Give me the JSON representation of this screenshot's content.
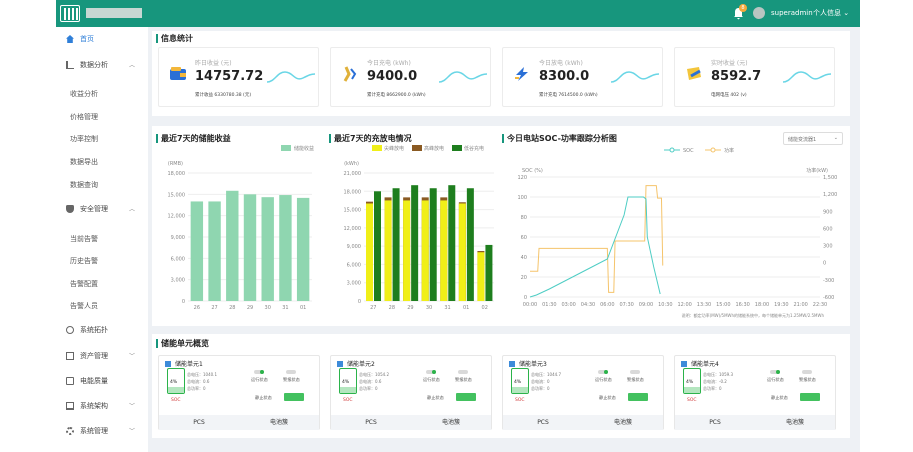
{
  "header": {
    "username": "superadmin",
    "personal_info": "个人信息",
    "notification_count": "8"
  },
  "sidebar": {
    "items": [
      {
        "label": "首页"
      },
      {
        "label": "数据分析"
      },
      {
        "label": "收益分析"
      },
      {
        "label": "价格管理"
      },
      {
        "label": "功率控制"
      },
      {
        "label": "数据导出"
      },
      {
        "label": "数据查询"
      },
      {
        "label": "安全管理"
      },
      {
        "label": "当前告警"
      },
      {
        "label": "历史告警"
      },
      {
        "label": "告警配置"
      },
      {
        "label": "告警人员"
      },
      {
        "label": "系统拓扑"
      },
      {
        "label": "资产管理"
      },
      {
        "label": "电能质量"
      },
      {
        "label": "系统架构"
      },
      {
        "label": "系统管理"
      }
    ]
  },
  "info": {
    "title": "信息统计",
    "cards": [
      {
        "label": "昨日收益 (元)",
        "value": "14757.72",
        "sub": "累计收益 6330780.38 (元)"
      },
      {
        "label": "今日充电 (kWh)",
        "value": "9400.0",
        "sub": "累计充电 8662900.0 (kWh)"
      },
      {
        "label": "今日放电 (kWh)",
        "value": "8300.0",
        "sub": "累计充电 7614500.0 (kWh)"
      },
      {
        "label": "实时收益 (元)",
        "value": "8592.7",
        "sub": "电网电压 402 (v)"
      }
    ]
  },
  "chart1": {
    "title": "最近7天的储能收益",
    "legend": "储能收益",
    "unit": "(RMB)"
  },
  "chart2": {
    "title": "最近7天的充放电情况",
    "unit": "(kWh)",
    "legend": [
      "尖峰放电",
      "高峰放电",
      "低谷充电"
    ]
  },
  "chart3": {
    "title": "今日电站SOC-功率跟踪分析图",
    "legend": [
      "SOC",
      "功率"
    ],
    "yleft": "SOC (%)",
    "yright": "功率(kW)",
    "selector": "储能变流器1",
    "note": "说明：额定功率(MW)/5MWh的储能系统中，每个储能单元为1.25MW/2.5MWh"
  },
  "units": {
    "title": "储能单元概览",
    "items": [
      {
        "name": "储能单元1",
        "pct": "4%",
        "soc": "SOC",
        "v": "1040.1",
        "i": "0.6",
        "p": "0"
      },
      {
        "name": "储能单元2",
        "pct": "4%",
        "soc": "SOC",
        "v": "1054.2",
        "i": "0.6",
        "p": "0"
      },
      {
        "name": "储能单元3",
        "pct": "4%",
        "soc": "SOC",
        "v": "1044.7",
        "i": "0",
        "p": "0"
      },
      {
        "name": "储能单元4",
        "pct": "4%",
        "soc": "SOC",
        "v": "1059.3",
        "i": "-0.2",
        "p": "0"
      }
    ],
    "labels": {
      "v": "总电压：",
      "i": "总电流：",
      "p": "总功率：",
      "run": "运行状态",
      "warn": "警报状态",
      "stop": "静止状态",
      "pcs": "PCS",
      "bms": "电池簇"
    }
  },
  "chart_data": [
    {
      "type": "bar",
      "title": "最近7天的储能收益",
      "categories": [
        "26",
        "27",
        "28",
        "29",
        "30",
        "31",
        "01"
      ],
      "series": [
        {
          "name": "储能收益",
          "values": [
            14000,
            14000,
            15500,
            15000,
            14600,
            14900,
            14500
          ]
        }
      ],
      "ylim": [
        0,
        18000
      ],
      "ylabel": "(RMB)",
      "yticks": [
        0,
        3000,
        6000,
        9000,
        12000,
        15000,
        18000
      ]
    },
    {
      "type": "bar",
      "title": "最近7天的充放电情况",
      "categories": [
        "27",
        "28",
        "29",
        "30",
        "31",
        "01",
        "02"
      ],
      "series": [
        {
          "name": "尖峰放电",
          "values": [
            16000,
            16500,
            16500,
            16500,
            16500,
            16000,
            8000
          ]
        },
        {
          "name": "高峰放电",
          "values": [
            16300,
            17000,
            17000,
            17000,
            17000,
            16200,
            8200
          ]
        },
        {
          "name": "低谷充电",
          "values": [
            18000,
            18500,
            19000,
            18500,
            19000,
            18500,
            9200
          ]
        }
      ],
      "ylim": [
        0,
        21000
      ],
      "ylabel": "(kWh)",
      "yticks": [
        0,
        3000,
        6000,
        9000,
        12000,
        15000,
        18000,
        21000
      ]
    },
    {
      "type": "line",
      "title": "今日电站SOC-功率跟踪分析图",
      "x": [
        "00:00",
        "01:30",
        "03:00",
        "04:30",
        "06:00",
        "07:30",
        "09:00",
        "10:30",
        "12:00",
        "13:30",
        "15:00",
        "16:30",
        "18:00",
        "19:30",
        "21:00",
        "22:30"
      ],
      "series": [
        {
          "name": "SOC",
          "axis": "left",
          "points": [
            [
              0,
              0
            ],
            [
              0.5,
              2
            ],
            [
              1.5,
              8
            ],
            [
              3,
              18
            ],
            [
              4.5,
              28
            ],
            [
              6,
              38
            ],
            [
              7.3,
              82
            ],
            [
              7.6,
              100
            ],
            [
              8.8,
              100
            ],
            [
              9,
              98
            ],
            [
              9.1,
              60
            ],
            [
              9.6,
              30
            ],
            [
              10.1,
              3
            ]
          ]
        },
        {
          "name": "功率",
          "axis": "right",
          "points": [
            [
              0,
              -150
            ],
            [
              0.6,
              -150
            ],
            [
              0.7,
              250
            ],
            [
              6,
              250
            ],
            [
              6.1,
              -520
            ],
            [
              6.5,
              -520
            ],
            [
              6.6,
              380
            ],
            [
              8.9,
              380
            ],
            [
              9,
              1350
            ],
            [
              9.8,
              1350
            ],
            [
              9.9,
              1130
            ],
            [
              10.2,
              1130
            ],
            [
              10.3,
              -50
            ]
          ]
        }
      ],
      "yleft": [
        0,
        120
      ],
      "yright": [
        -600,
        1500
      ],
      "yleft_ticks": [
        0,
        20,
        40,
        60,
        80,
        100,
        120
      ],
      "yright_ticks": [
        -600,
        -300,
        0,
        300,
        600,
        900,
        1200,
        1500
      ]
    }
  ]
}
